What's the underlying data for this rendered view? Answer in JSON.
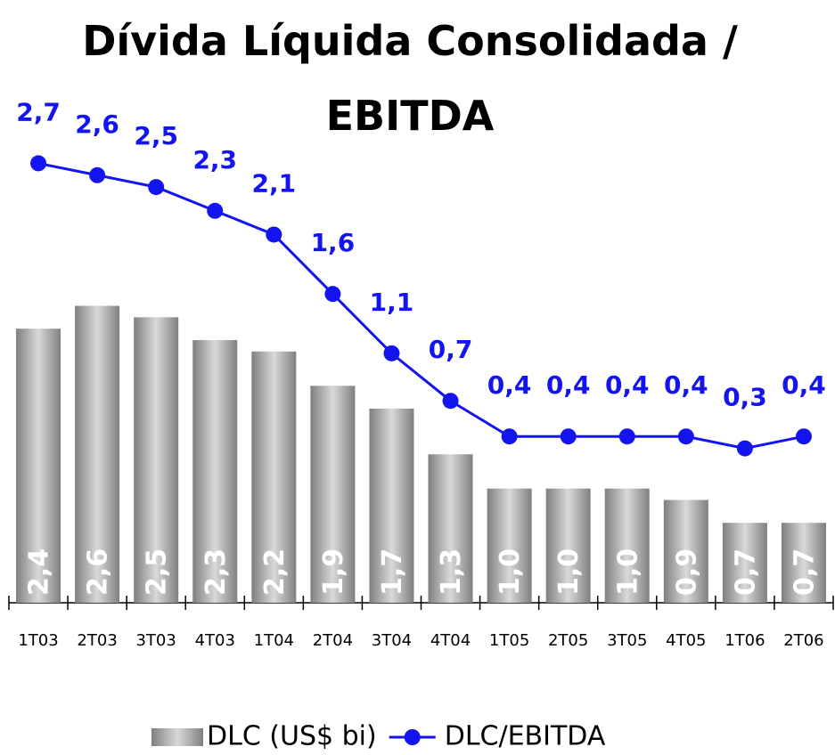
{
  "chart_data": {
    "type": "bar-line",
    "title": "Dívida Líquida Consolidada / EBITDA",
    "categories": [
      "1T03",
      "2T03",
      "3T03",
      "4T03",
      "1T04",
      "2T04",
      "3T04",
      "4T04",
      "1T05",
      "2T05",
      "3T05",
      "4T05",
      "1T06",
      "2T06"
    ],
    "series": [
      {
        "name": "DLC (US$ bi)",
        "type": "bar",
        "color": "#7f7f7f",
        "values": [
          2.4,
          2.6,
          2.5,
          2.3,
          2.2,
          1.9,
          1.7,
          1.3,
          1.0,
          1.0,
          1.0,
          0.9,
          0.7,
          0.7
        ],
        "value_labels": [
          "2,4",
          "2,6",
          "2,5",
          "2,3",
          "2,2",
          "1,9",
          "1,7",
          "1,3",
          "1,0",
          "1,0",
          "1,0",
          "0,9",
          "0,7",
          "0,7"
        ]
      },
      {
        "name": "DLC/EBITDA",
        "type": "line",
        "axis": "y2",
        "color": "#1414f0",
        "values": [
          2.7,
          2.6,
          2.5,
          2.3,
          2.1,
          1.6,
          1.1,
          0.7,
          0.4,
          0.4,
          0.4,
          0.4,
          0.3,
          0.4
        ],
        "value_labels": [
          "2,7",
          "2,6",
          "2,5",
          "2,3",
          "2,1",
          "1,6",
          "1,1",
          "0,7",
          "0,4",
          "0,4",
          "0,4",
          "0,4",
          "0,3",
          "0,4"
        ]
      }
    ],
    "ylim": [
      0,
      5.2
    ],
    "y2lim": [
      -1,
      4
    ],
    "legend": "bottom"
  }
}
